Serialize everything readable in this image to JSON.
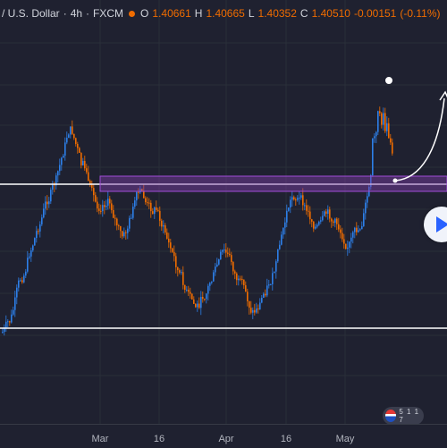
{
  "header": {
    "pair": "/ U.S. Dollar",
    "timeframe": "4h",
    "source": "FXCM",
    "open_key": "O",
    "open": "1.40661",
    "high_key": "H",
    "high": "1.40665",
    "low_key": "L",
    "low": "1.40352",
    "close_key": "C",
    "close": "1.40510",
    "change": "-0.00151",
    "change_pct": "(-0.11%)"
  },
  "x_axis": {
    "ticks": [
      "Mar",
      "16",
      "Apr",
      "16",
      "May"
    ]
  },
  "colors": {
    "background": "#1f2130",
    "candle_up": "#2d7fe8",
    "candle_down": "#ef6c00",
    "zone": "#7e3fa8",
    "line": "#ffffff"
  },
  "badge": {
    "text": "5 1 1 7"
  },
  "chart_data": {
    "type": "candlestick",
    "price_levels": [
      "support line",
      "resistance line"
    ],
    "zone": "purple supply/demand zone",
    "projection": "white curved arrow upward",
    "trend_series_y": [
      370,
      360,
      320,
      300,
      270,
      250,
      230,
      210,
      200,
      160,
      130,
      170,
      210,
      230,
      240,
      215,
      225,
      250,
      280,
      240,
      215,
      220,
      240,
      230,
      255,
      280,
      300,
      320,
      340,
      350,
      330,
      310,
      300,
      280,
      290,
      310,
      330,
      345,
      350,
      330,
      310,
      300,
      260,
      220,
      210,
      230,
      245,
      250,
      255,
      240,
      250,
      260,
      270,
      265,
      250,
      210,
      180,
      150,
      160,
      180
    ]
  }
}
